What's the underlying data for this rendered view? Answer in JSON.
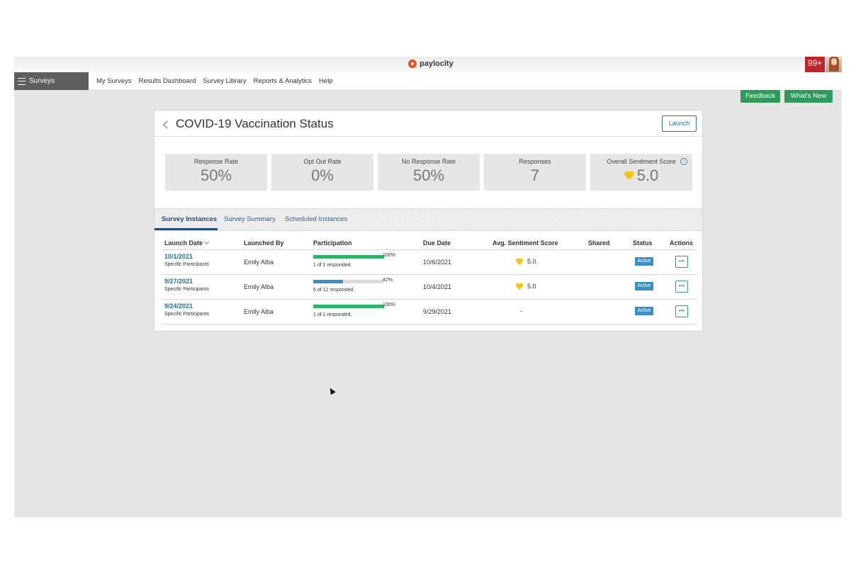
{
  "brand": {
    "logo_text": "paylocity"
  },
  "notifications": {
    "count": "99+"
  },
  "nav": {
    "module_label": "Surveys",
    "links": [
      "My Surveys",
      "Results Dashboard",
      "Survey Library",
      "Reports & Analytics",
      "Help"
    ]
  },
  "header_buttons": {
    "feedback": "Feedback",
    "whats_new": "What's New"
  },
  "survey": {
    "title": "COVID-19 Vaccination Status",
    "launch_label": "Launch"
  },
  "stats": [
    {
      "label": "Response Rate",
      "value": "50%"
    },
    {
      "label": "Opt Out Rate",
      "value": "0%"
    },
    {
      "label": "No Response Rate",
      "value": "50%"
    },
    {
      "label": "Responses",
      "value": "7"
    },
    {
      "label": "Overall Sentiment Score",
      "value": "5.0"
    }
  ],
  "tabs": [
    "Survey Instances",
    "Survey Summary",
    "Scheduled Instances"
  ],
  "table": {
    "columns": [
      "Launch Date",
      "Launched By",
      "Participation",
      "Due Date",
      "Avg. Sentiment Score",
      "Shared",
      "Status",
      "Actions"
    ],
    "rows": [
      {
        "launch_date": "10/1/2021",
        "audience": "Specific Participants",
        "launched_by": "Emily Alba",
        "participation_pct": "100%",
        "participation_fraction": 1.0,
        "participation_color": "#2fb36a",
        "participation_text": "1 of 1 responded.",
        "due_date": "10/6/2021",
        "sentiment": "5.0",
        "has_heart": true,
        "status": "Active",
        "actions": "•••"
      },
      {
        "launch_date": "9/27/2021",
        "audience": "Specific Participants",
        "launched_by": "Emily Alba",
        "participation_pct": "42%",
        "participation_fraction": 0.42,
        "participation_color": "#3a8fc7",
        "participation_text": "5 of 12 responded.",
        "due_date": "10/4/2021",
        "sentiment": "5.0",
        "has_heart": true,
        "status": "Active",
        "actions": "•••"
      },
      {
        "launch_date": "9/24/2021",
        "audience": "Specific Participants",
        "launched_by": "Emily Alba",
        "participation_pct": "100%",
        "participation_fraction": 1.0,
        "participation_color": "#2fb36a",
        "participation_text": "1 of 1 responded.",
        "due_date": "9/29/2021",
        "sentiment": "-",
        "has_heart": false,
        "status": "Active",
        "actions": "•••"
      }
    ]
  },
  "colors": {
    "accent_green": "#2f9a5a",
    "notification_red": "#c1232c",
    "link_blue": "#2a6f9a",
    "heart_yellow": "#f5c316"
  }
}
